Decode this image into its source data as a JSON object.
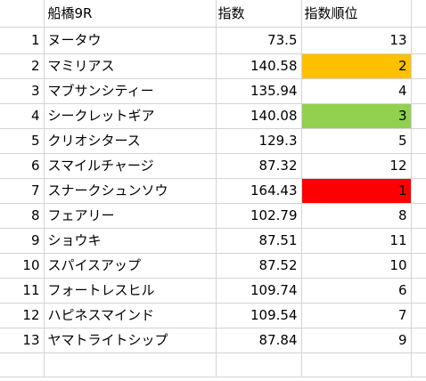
{
  "header": {
    "race": "船橋9R",
    "index": "指数",
    "rank": "指数順位"
  },
  "rows": [
    {
      "no": "1",
      "name": "ヌータウ",
      "index": "73.5",
      "rank": "13",
      "fill": ""
    },
    {
      "no": "2",
      "name": "マミリアス",
      "index": "140.58",
      "rank": "2",
      "fill": "#FFC000"
    },
    {
      "no": "3",
      "name": "マブサンシティー",
      "index": "135.94",
      "rank": "4",
      "fill": ""
    },
    {
      "no": "4",
      "name": "シークレットギア",
      "index": "140.08",
      "rank": "3",
      "fill": "#92D050"
    },
    {
      "no": "5",
      "name": "クリオシタース",
      "index": "129.3",
      "rank": "5",
      "fill": ""
    },
    {
      "no": "6",
      "name": "スマイルチャージ",
      "index": "87.32",
      "rank": "12",
      "fill": ""
    },
    {
      "no": "7",
      "name": "スナークシュンソウ",
      "index": "164.43",
      "rank": "1",
      "fill": "#FF0000"
    },
    {
      "no": "8",
      "name": "フェアリー",
      "index": "102.79",
      "rank": "8",
      "fill": ""
    },
    {
      "no": "9",
      "name": "ショウキ",
      "index": "87.51",
      "rank": "11",
      "fill": ""
    },
    {
      "no": "10",
      "name": "スパイスアップ",
      "index": "87.52",
      "rank": "10",
      "fill": ""
    },
    {
      "no": "11",
      "name": "フォートレスヒル",
      "index": "109.74",
      "rank": "6",
      "fill": ""
    },
    {
      "no": "12",
      "name": "ハピネスマインド",
      "index": "109.54",
      "rank": "7",
      "fill": ""
    },
    {
      "no": "13",
      "name": "ヤマトライトシップ",
      "index": "87.84",
      "rank": "9",
      "fill": ""
    }
  ]
}
